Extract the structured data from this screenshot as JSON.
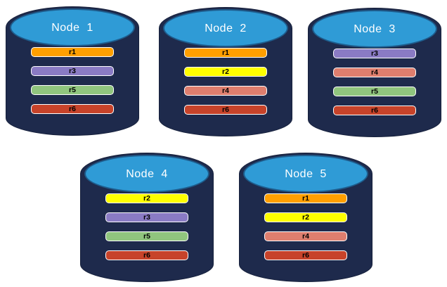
{
  "diagram": {
    "description": "Five database nodes showing replica placement",
    "colors": {
      "cylinder_body": "#1E2A4C",
      "cylinder_body_border": "#16203B",
      "cylinder_lid": "#2F9BD6",
      "cylinder_lid_border": "#1E5C8C",
      "bar_border": "#FFFFFF",
      "bar_text": "#000000",
      "title_text": "#FFFFFF"
    },
    "replica_colors": {
      "r1": "#FF9F00",
      "r2": "#FFFF00",
      "r3": "#8A7BC4",
      "r4": "#DE7E6E",
      "r5": "#90C57E",
      "r6": "#C7432A"
    },
    "nodes": [
      {
        "id": "node-1",
        "title": "Node  1",
        "replicas": [
          "r1",
          "r3",
          "r5",
          "r6"
        ]
      },
      {
        "id": "node-2",
        "title": "Node  2",
        "replicas": [
          "r1",
          "r2",
          "r4",
          "r6"
        ]
      },
      {
        "id": "node-3",
        "title": "Node  3",
        "replicas": [
          "r3",
          "r4",
          "r5",
          "r6"
        ]
      },
      {
        "id": "node-4",
        "title": "Node  4",
        "replicas": [
          "r2",
          "r3",
          "r5",
          "r6"
        ]
      },
      {
        "id": "node-5",
        "title": "Node  5",
        "replicas": [
          "r1",
          "r2",
          "r4",
          "r6"
        ]
      }
    ]
  }
}
